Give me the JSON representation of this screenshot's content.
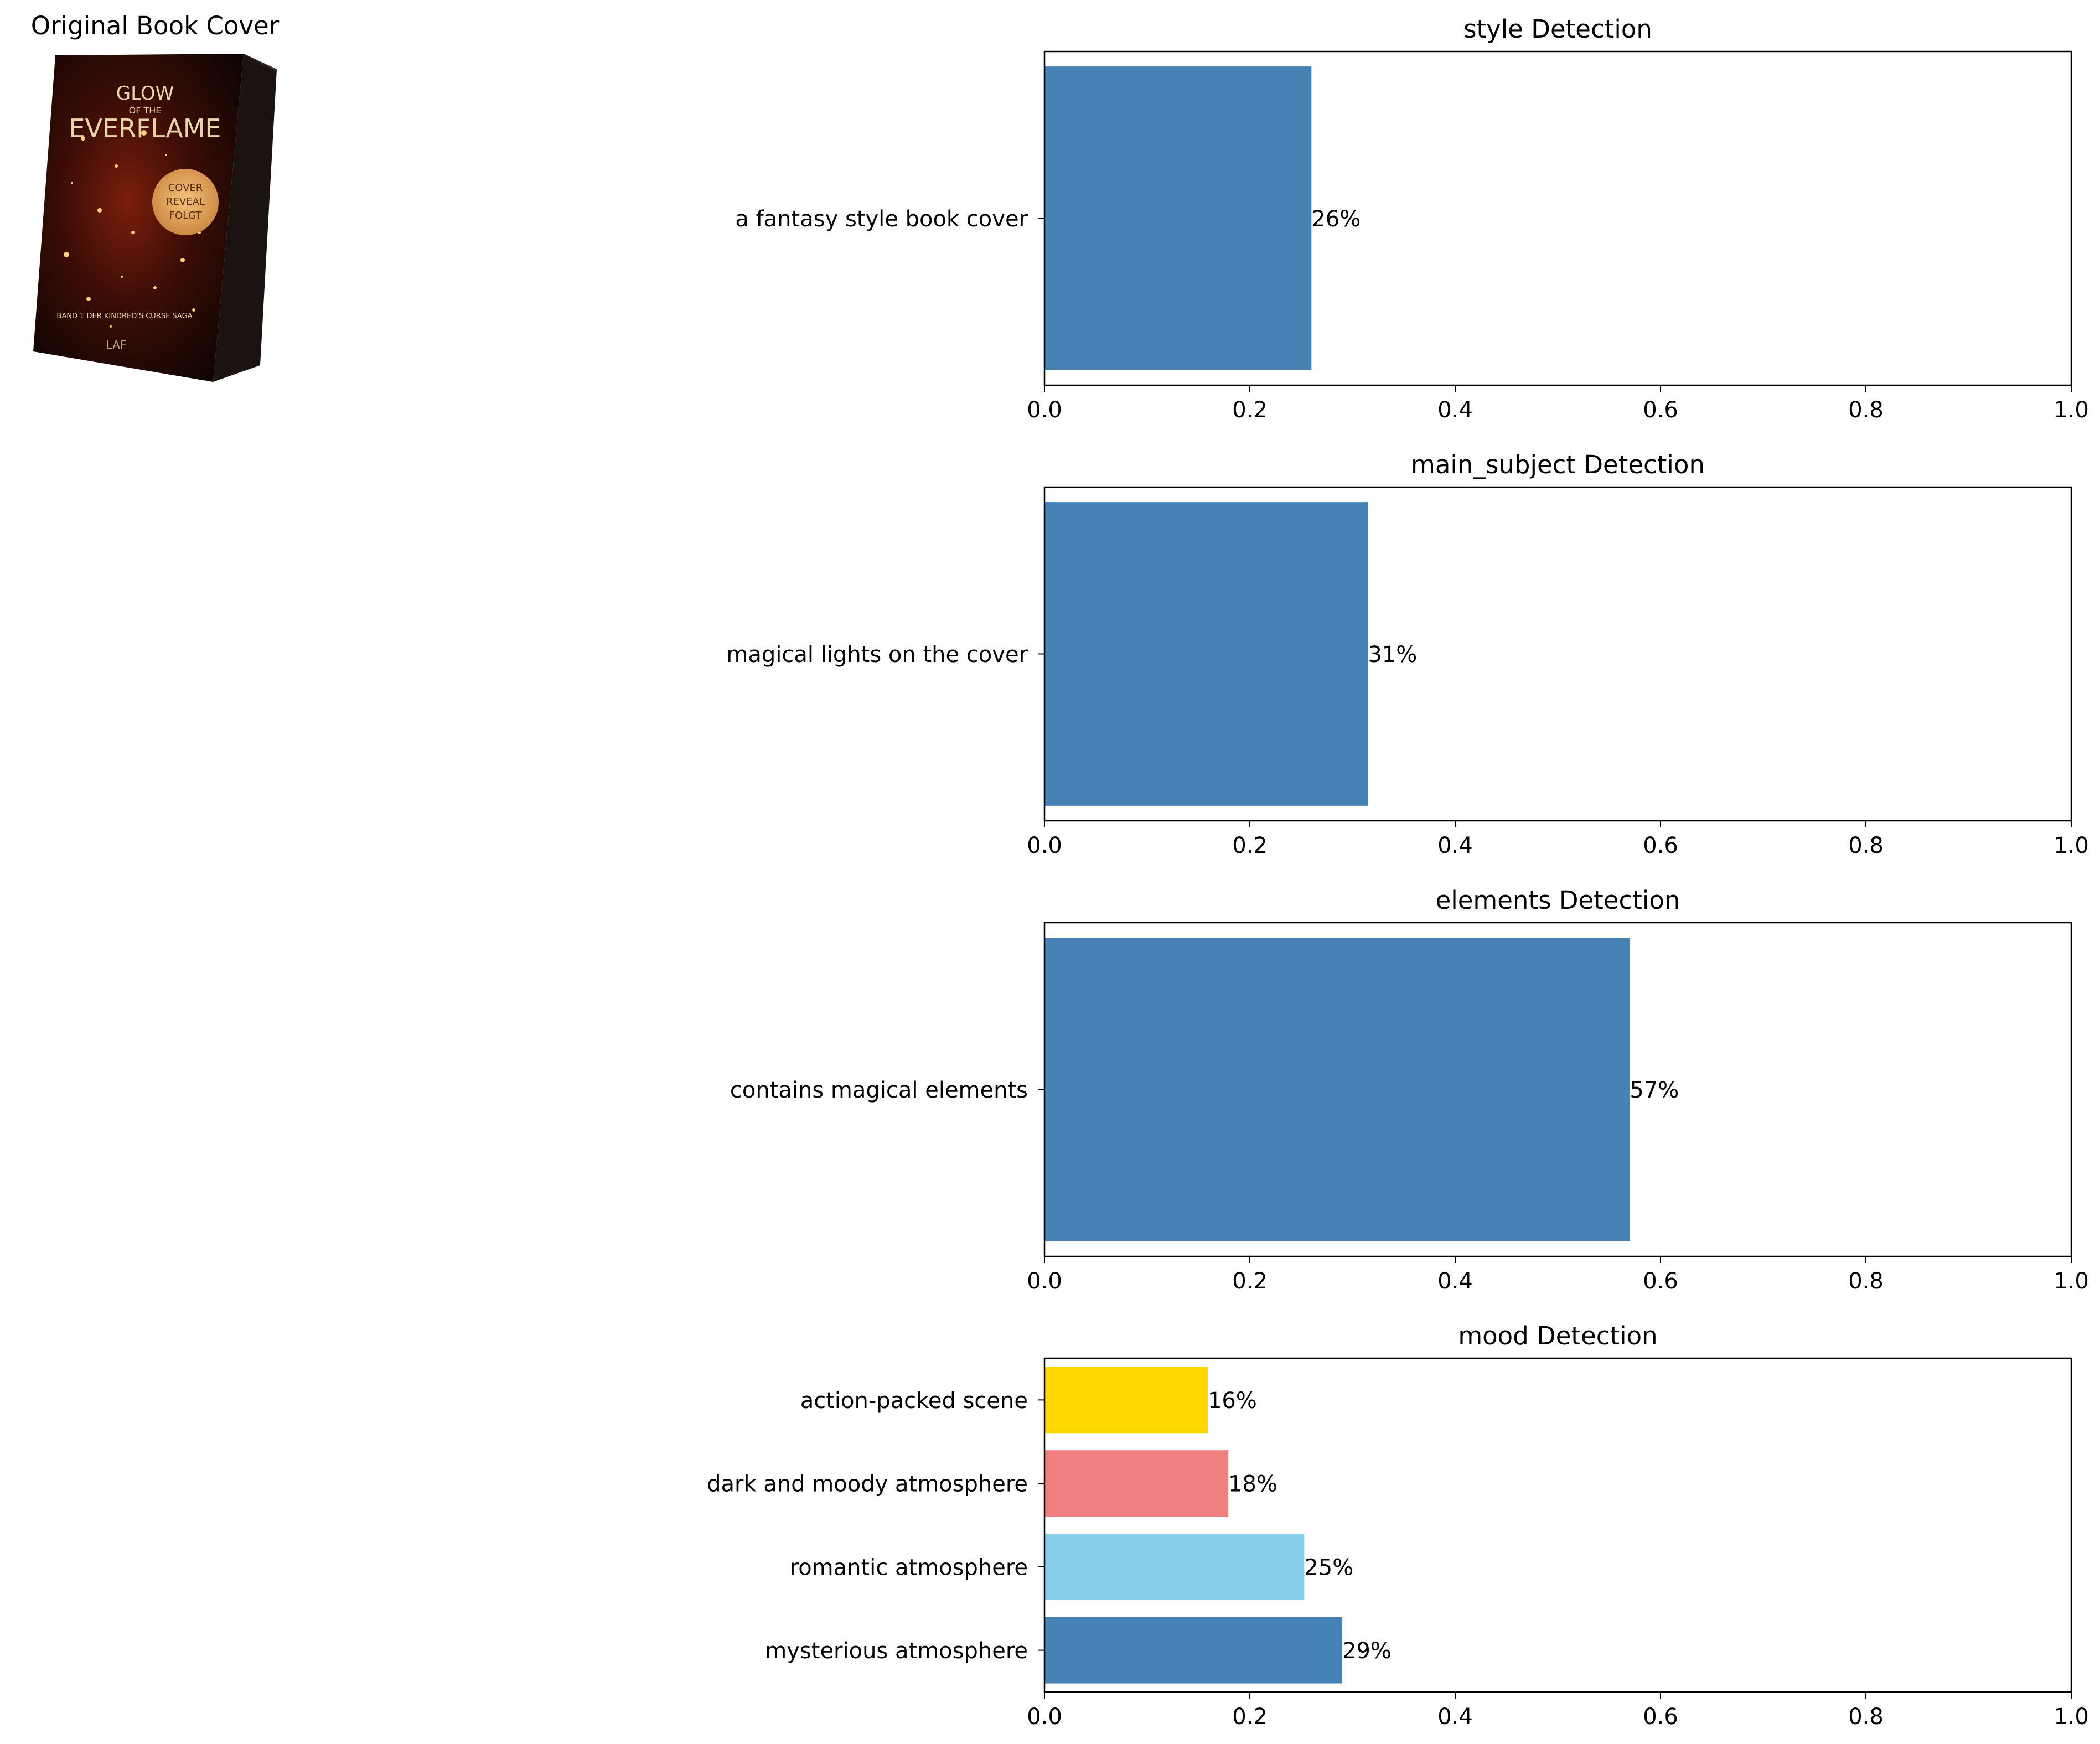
{
  "figure": {
    "cover_title": "Original Book Cover",
    "cover_image": {
      "title_line1": "GLOW",
      "title_line2": "OF THE",
      "title_line3": "EVERFLAME",
      "badge_line1": "COVER",
      "badge_line2": "REVEAL",
      "badge_line3": "FOLGT",
      "subtitle": "BAND 1 DER KINDRED'S CURSE SAGA",
      "publisher": "LAF"
    }
  },
  "chart_data": [
    {
      "type": "bar",
      "orientation": "horizontal",
      "title": "style Detection",
      "categories": [
        "a fantasy style book cover"
      ],
      "values": [
        0.26
      ],
      "value_labels": [
        "26%"
      ],
      "colors": [
        "#4682b4"
      ],
      "xlim": [
        0,
        1.0
      ],
      "xticks": [
        "0.0",
        "0.2",
        "0.4",
        "0.6",
        "0.8",
        "1.0"
      ],
      "grid": false
    },
    {
      "type": "bar",
      "orientation": "horizontal",
      "title": "main_subject Detection",
      "categories": [
        "magical lights on the cover"
      ],
      "values": [
        0.315
      ],
      "value_labels": [
        "31%"
      ],
      "colors": [
        "#4682b4"
      ],
      "xlim": [
        0,
        1.0
      ],
      "xticks": [
        "0.0",
        "0.2",
        "0.4",
        "0.6",
        "0.8",
        "1.0"
      ],
      "grid": false
    },
    {
      "type": "bar",
      "orientation": "horizontal",
      "title": "elements Detection",
      "categories": [
        "contains magical elements"
      ],
      "values": [
        0.57
      ],
      "value_labels": [
        "57%"
      ],
      "colors": [
        "#4682b4"
      ],
      "xlim": [
        0,
        1.0
      ],
      "xticks": [
        "0.0",
        "0.2",
        "0.4",
        "0.6",
        "0.8",
        "1.0"
      ],
      "grid": false
    },
    {
      "type": "bar",
      "orientation": "horizontal",
      "title": "mood Detection",
      "categories": [
        "mysterious atmosphere",
        "romantic atmosphere",
        "dark and moody atmosphere",
        "action-packed scene"
      ],
      "values": [
        0.29,
        0.253,
        0.179,
        0.159
      ],
      "value_labels": [
        "29%",
        "25%",
        "18%",
        "16%"
      ],
      "colors": [
        "#4682b4",
        "#87ceeb",
        "#f08080",
        "#ffd700"
      ],
      "xlim": [
        0,
        1.0
      ],
      "xticks": [
        "0.0",
        "0.2",
        "0.4",
        "0.6",
        "0.8",
        "1.0"
      ],
      "grid": false
    }
  ]
}
